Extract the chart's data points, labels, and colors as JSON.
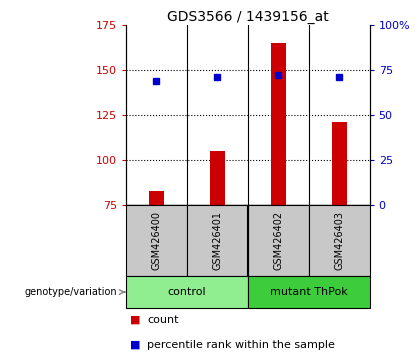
{
  "title": "GDS3566 / 1439156_at",
  "samples": [
    "GSM426400",
    "GSM426401",
    "GSM426402",
    "GSM426403"
  ],
  "counts": [
    83,
    105,
    165,
    121
  ],
  "percentiles": [
    69,
    71,
    72,
    71
  ],
  "ylim_left": [
    75,
    175
  ],
  "ylim_right": [
    0,
    100
  ],
  "yticks_left": [
    75,
    100,
    125,
    150,
    175
  ],
  "yticks_right": [
    0,
    25,
    50,
    75,
    100
  ],
  "ytick_labels_right": [
    "0",
    "25",
    "50",
    "75",
    "100%"
  ],
  "groups": [
    {
      "label": "control",
      "indices": [
        0,
        1
      ],
      "color": "#90EE90"
    },
    {
      "label": "mutant ThPok",
      "indices": [
        2,
        3
      ],
      "color": "#3CCC3C"
    }
  ],
  "bar_color": "#CC0000",
  "dot_color": "#0000CC",
  "gray_box_color": "#C8C8C8",
  "label_color_left": "#CC0000",
  "label_color_right": "#0000CC",
  "title_fontsize": 10,
  "tick_fontsize": 8,
  "legend_fontsize": 8,
  "sample_fontsize": 7,
  "bar_width": 0.25,
  "genotype_label": "genotype/variation"
}
